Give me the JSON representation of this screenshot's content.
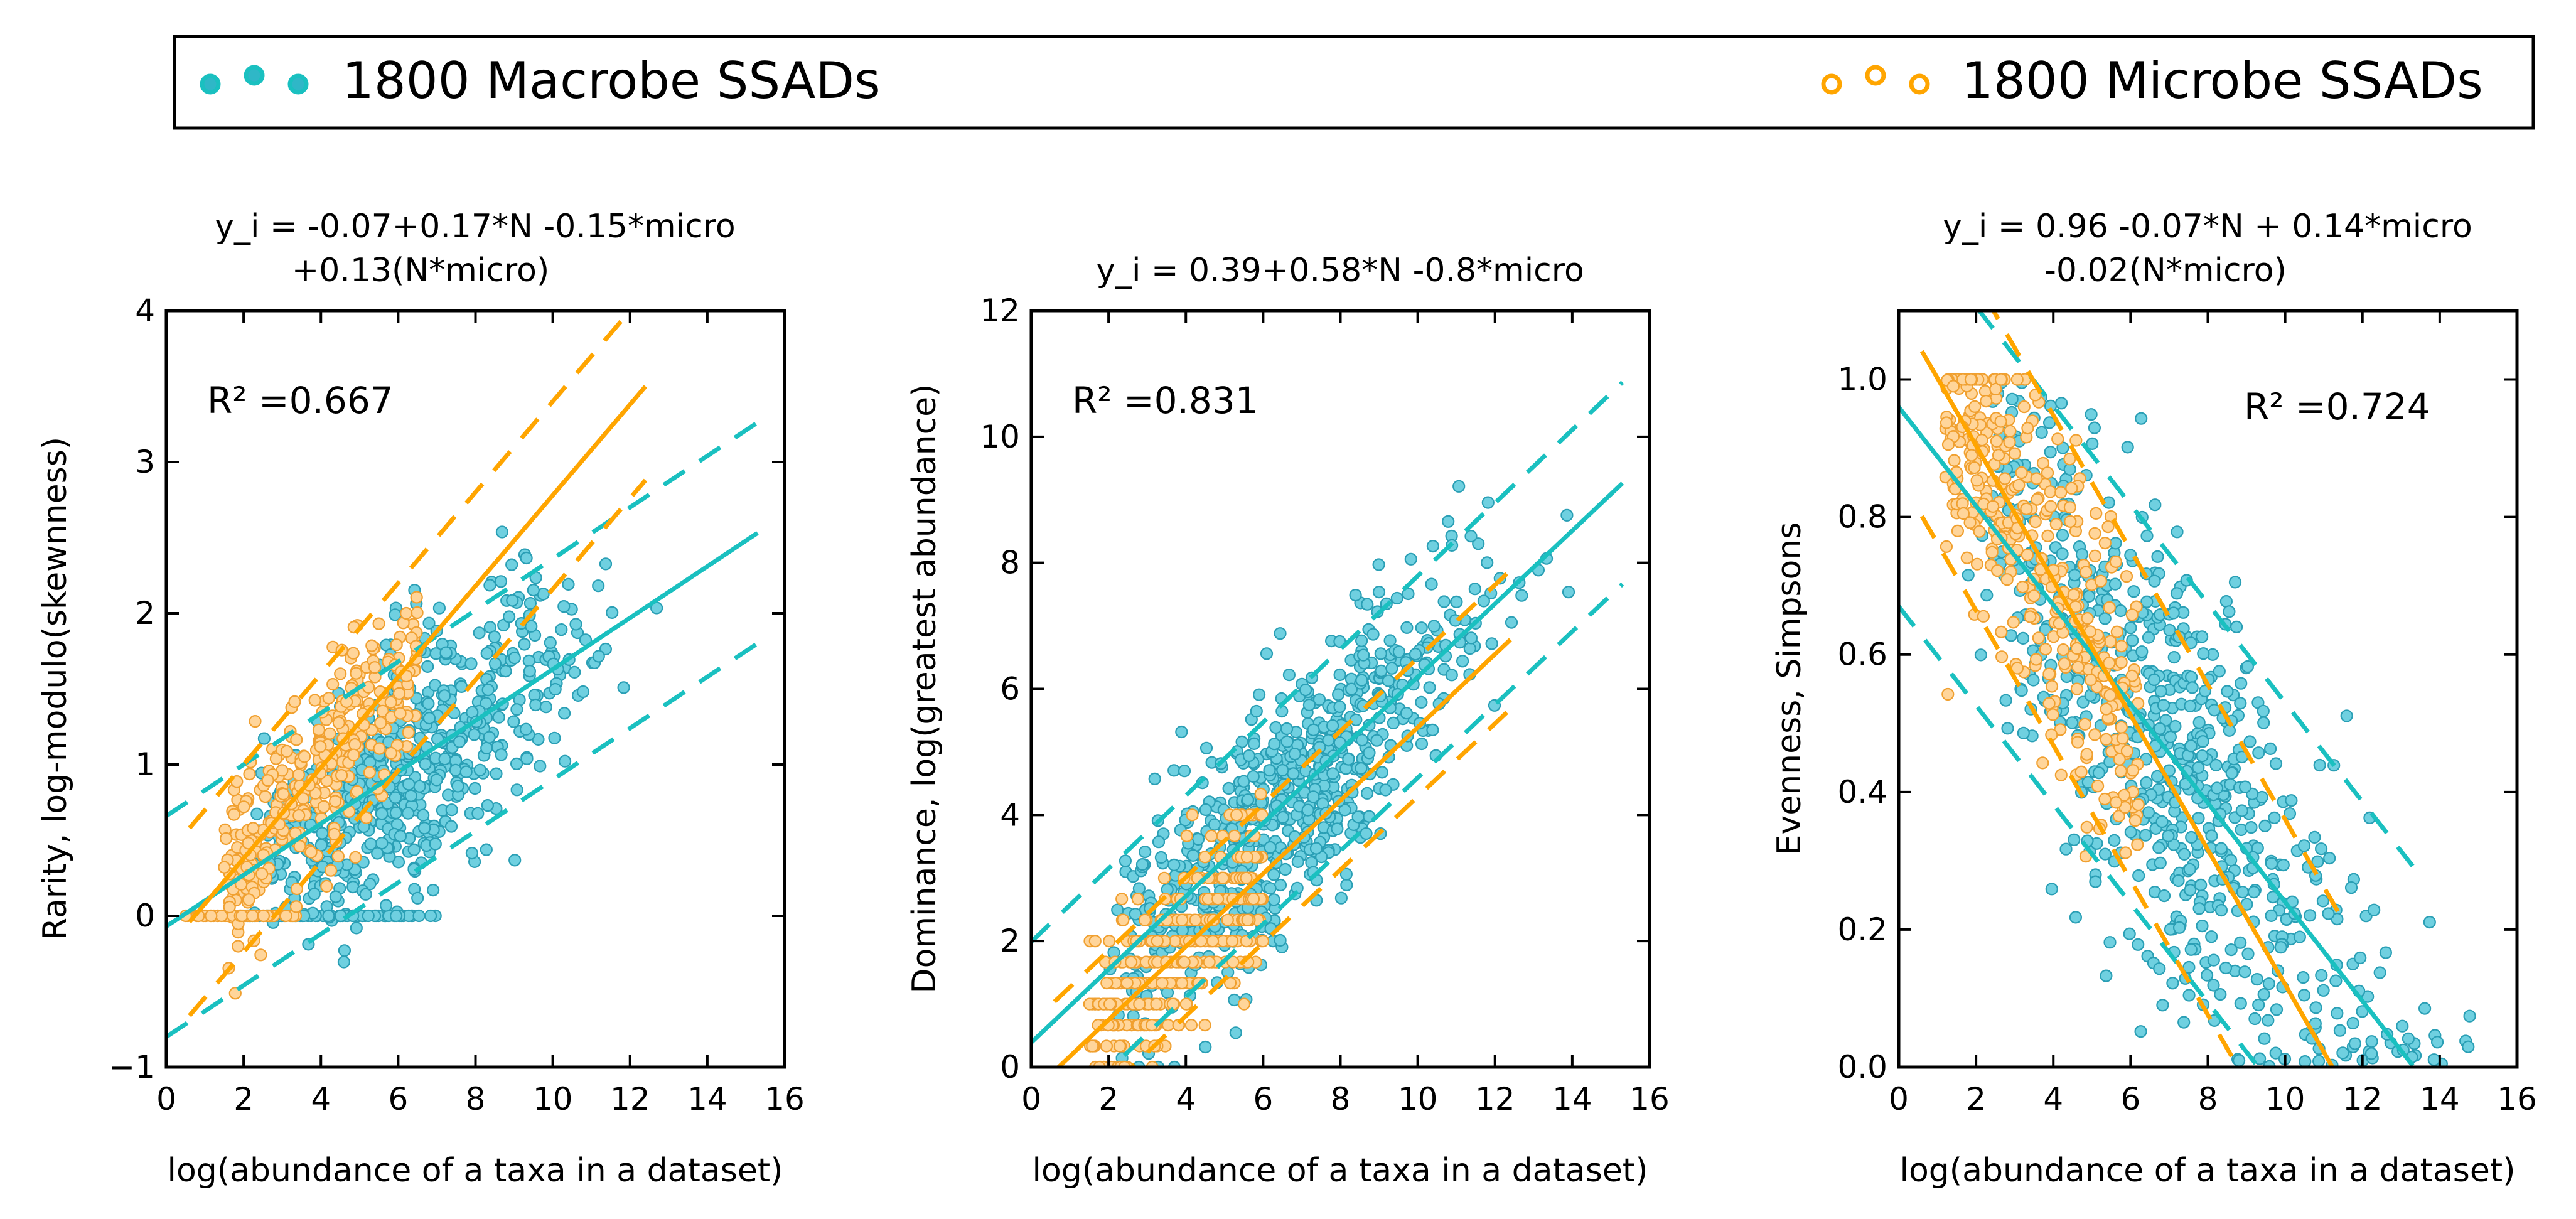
{
  "legend": {
    "placement": "top",
    "entries": [
      {
        "label": "1800 Macrobe SSADs",
        "color": "#1ac0c0",
        "marker": "circle-triple"
      },
      {
        "label": "1800 Microbe SSADs",
        "color": "#ffa500",
        "marker": "circle-triple"
      }
    ]
  },
  "colors": {
    "macrobe": "#1ac0c0",
    "microbe": "#ffa500",
    "macrobe_fill": "#6fd0e0",
    "microbe_fill": "#ffd59a"
  },
  "chart_data": [
    {
      "type": "scatter",
      "id": "rarity",
      "equation": [
        "y_i = -0.07+0.17*N -0.15*micro",
        "+0.13(N*micro)"
      ],
      "r2": "R² =0.667",
      "xlabel": "log(abundance of a taxa in a dataset)",
      "ylabel": "Rarity, log-modulo(skewnness)",
      "xlim": [
        0,
        16
      ],
      "ylim": [
        -1,
        4
      ],
      "xticks": [
        0,
        2,
        4,
        6,
        8,
        10,
        12,
        14,
        16
      ],
      "yticks": [
        -1,
        0,
        1,
        2,
        3,
        4
      ],
      "r2_position": "upper-left",
      "series": [
        {
          "name": "1800 Macrobe SSADs",
          "fit": {
            "intercept": -0.07,
            "slope": 0.17,
            "x_range": [
              0,
              15.3
            ]
          },
          "band": 0.73
        },
        {
          "name": "1800 Microbe SSADs",
          "fit": {
            "intercept": -0.22,
            "slope": 0.3,
            "x_range": [
              0.6,
              12.4
            ]
          },
          "band": 0.62
        }
      ]
    },
    {
      "type": "scatter",
      "id": "dominance",
      "equation": [
        "y_i = 0.39+0.58*N -0.8*micro"
      ],
      "r2": "R² =0.831",
      "xlabel": "log(abundance of a taxa in a dataset)",
      "ylabel": "Dominance, log(greatest abundance)",
      "xlim": [
        0,
        16
      ],
      "ylim": [
        0,
        12
      ],
      "xticks": [
        0,
        2,
        4,
        6,
        8,
        10,
        12,
        14,
        16
      ],
      "yticks": [
        0,
        2,
        4,
        6,
        8,
        10,
        12
      ],
      "r2_position": "upper-left",
      "series": [
        {
          "name": "1800 Macrobe SSADs",
          "fit": {
            "intercept": 0.39,
            "slope": 0.58,
            "x_range": [
              0,
              15.3
            ]
          },
          "band": 1.6
        },
        {
          "name": "1800 Microbe SSADs",
          "fit": {
            "intercept": -0.41,
            "slope": 0.58,
            "x_range": [
              0.6,
              12.4
            ]
          },
          "band": 1.1
        }
      ]
    },
    {
      "type": "scatter",
      "id": "evenness",
      "equation": [
        "y_i = 0.96 -0.07*N + 0.14*micro",
        "-0.02(N*micro)"
      ],
      "r2": "R² =0.724",
      "xlabel": "log(abundance of a taxa in a dataset)",
      "ylabel": "Evenness, Simpsons",
      "xlim": [
        0,
        16
      ],
      "ylim": [
        0,
        1.1
      ],
      "xticks": [
        0,
        2,
        4,
        6,
        8,
        10,
        12,
        14,
        16
      ],
      "yticks": [
        0.0,
        0.2,
        0.4,
        0.6,
        0.8,
        1.0
      ],
      "r2_position": "upper-right",
      "series": [
        {
          "name": "1800 Macrobe SSADs",
          "fit": {
            "intercept": 0.96,
            "slope": -0.072,
            "x_range": [
              0,
              13.3
            ]
          },
          "band": 0.29
        },
        {
          "name": "1800 Microbe SSADs",
          "fit": {
            "intercept": 1.1,
            "slope": -0.098,
            "x_range": [
              0.6,
              11.4
            ]
          },
          "band": 0.24
        }
      ]
    }
  ]
}
